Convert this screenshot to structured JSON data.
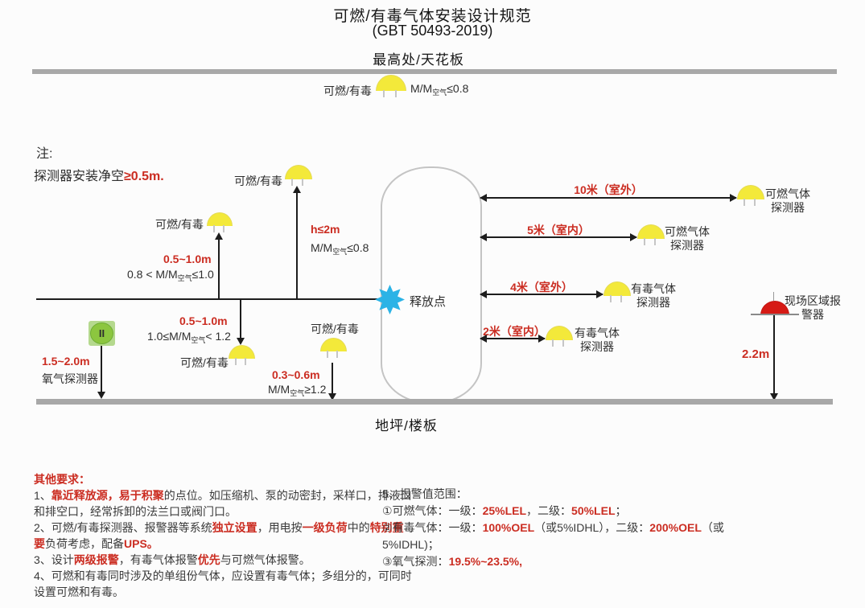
{
  "title": {
    "main": "可燃/有毒气体安装设计规范",
    "sub": "(GBT 50493-2019)",
    "top_boundary": "最高处/天花板",
    "bottom_boundary": "地坪/楼板"
  },
  "note": {
    "label": "注:",
    "text_black": "探测器安装净空",
    "text_red": "≥0.5m."
  },
  "release_point": {
    "label": "释放点"
  },
  "detectors": {
    "ceiling": {
      "label": "可燃/有毒",
      "formula": {
        "pre": "M/M",
        "sub": "空气",
        "post": "≤0.8"
      }
    },
    "upper_left": {
      "label": "可燃/有毒",
      "distance": "0.5~1.0m",
      "formula": {
        "pre": "0.8 < M/M",
        "sub": "空气",
        "post": "≤1.0"
      }
    },
    "mid_high": {
      "label": "可燃/有毒",
      "distance": "h≤2m",
      "formula": {
        "pre": "M/M",
        "sub": "空气",
        "post": "≤0.8"
      }
    },
    "below_pipe": {
      "label": "可燃/有毒",
      "distance": "0.5~1.0m",
      "formula": {
        "pre": "1.0≤M/M",
        "sub": "空气",
        "post": "< 1.2"
      }
    },
    "near_ground": {
      "label": "可燃/有毒",
      "distance": "0.3~0.6m",
      "formula": {
        "pre": "M/M",
        "sub": "空气",
        "post": "≥1.2"
      }
    },
    "oxygen": {
      "symbol": "II",
      "distance": "1.5~2.0m",
      "label": "氧气探测器"
    }
  },
  "right_rows": [
    {
      "distance": "10米（室外）",
      "name1": "可燃气体",
      "name2": "探测器"
    },
    {
      "distance": "5米（室内）",
      "name1": "可燃气体",
      "name2": "探测器"
    },
    {
      "distance": "4米（室外）",
      "name1": "有毒气体",
      "name2": "探测器"
    },
    {
      "distance": "2米（室内）",
      "name1": "有毒气体",
      "name2": "探测器"
    }
  ],
  "area_alarm": {
    "name1": "现场区域报",
    "name2": "警器",
    "distance": "2.2m"
  },
  "requirements": {
    "heading": "其他要求：",
    "left_lines": [
      [
        {
          "t": "1、"
        },
        {
          "t": "靠近释放源，易于积聚",
          "r": true
        },
        {
          "t": "的点位。如压缩机、泵的动密封，采样口，排液口"
        }
      ],
      [
        {
          "t": "和排空口，经常拆卸的法兰口或阀门口。"
        }
      ],
      [
        {
          "t": "2、可燃/有毒探测器、报警器等系统"
        },
        {
          "t": "独立设置",
          "r": true
        },
        {
          "t": "，用电按"
        },
        {
          "t": "一级负荷",
          "r": true
        },
        {
          "t": "中的"
        },
        {
          "t": "特别重",
          "r": true
        }
      ],
      [
        {
          "t": "要",
          "r": true
        },
        {
          "t": "负荷考虑，配备"
        },
        {
          "t": "UPS。",
          "r": true
        }
      ],
      [
        {
          "t": "3、设计"
        },
        {
          "t": "两级报警",
          "r": true
        },
        {
          "t": "，有毒气体报警"
        },
        {
          "t": "优先",
          "r": true
        },
        {
          "t": "与可燃气体报警。"
        }
      ],
      [
        {
          "t": "4、可燃和有毒同时涉及的单组份气体，应设置有毒气体；多组分的，可同时"
        }
      ],
      [
        {
          "t": "设置可燃和有毒。"
        }
      ]
    ],
    "right_lines": [
      [
        {
          "t": "5、报警值范围："
        }
      ],
      [
        {
          "t": "①可燃气体：一级："
        },
        {
          "t": "25%LEL",
          "r": true
        },
        {
          "t": "，二级："
        },
        {
          "t": "50%LEL",
          "r": true
        },
        {
          "t": "；"
        }
      ],
      [
        {
          "t": "②有毒气体：一级："
        },
        {
          "t": "100%OEL",
          "r": true
        },
        {
          "t": "（或5%IDHL），二级："
        },
        {
          "t": "200%OEL",
          "r": true
        },
        {
          "t": "（或"
        }
      ],
      [
        {
          "t": "5%IDHL)；"
        }
      ],
      [
        {
          "t": "③氧气探测："
        },
        {
          "t": "19.5%~23.5%,",
          "r": true
        }
      ]
    ]
  },
  "colors": {
    "red_text": "#cb2d22",
    "detector_yellow": "#f3e93a",
    "alarm_red": "#d61a15",
    "release_blue": "#2bb3e6",
    "oxygen_green": "#8cc63f",
    "surface_gray": "#a8a8a8"
  }
}
